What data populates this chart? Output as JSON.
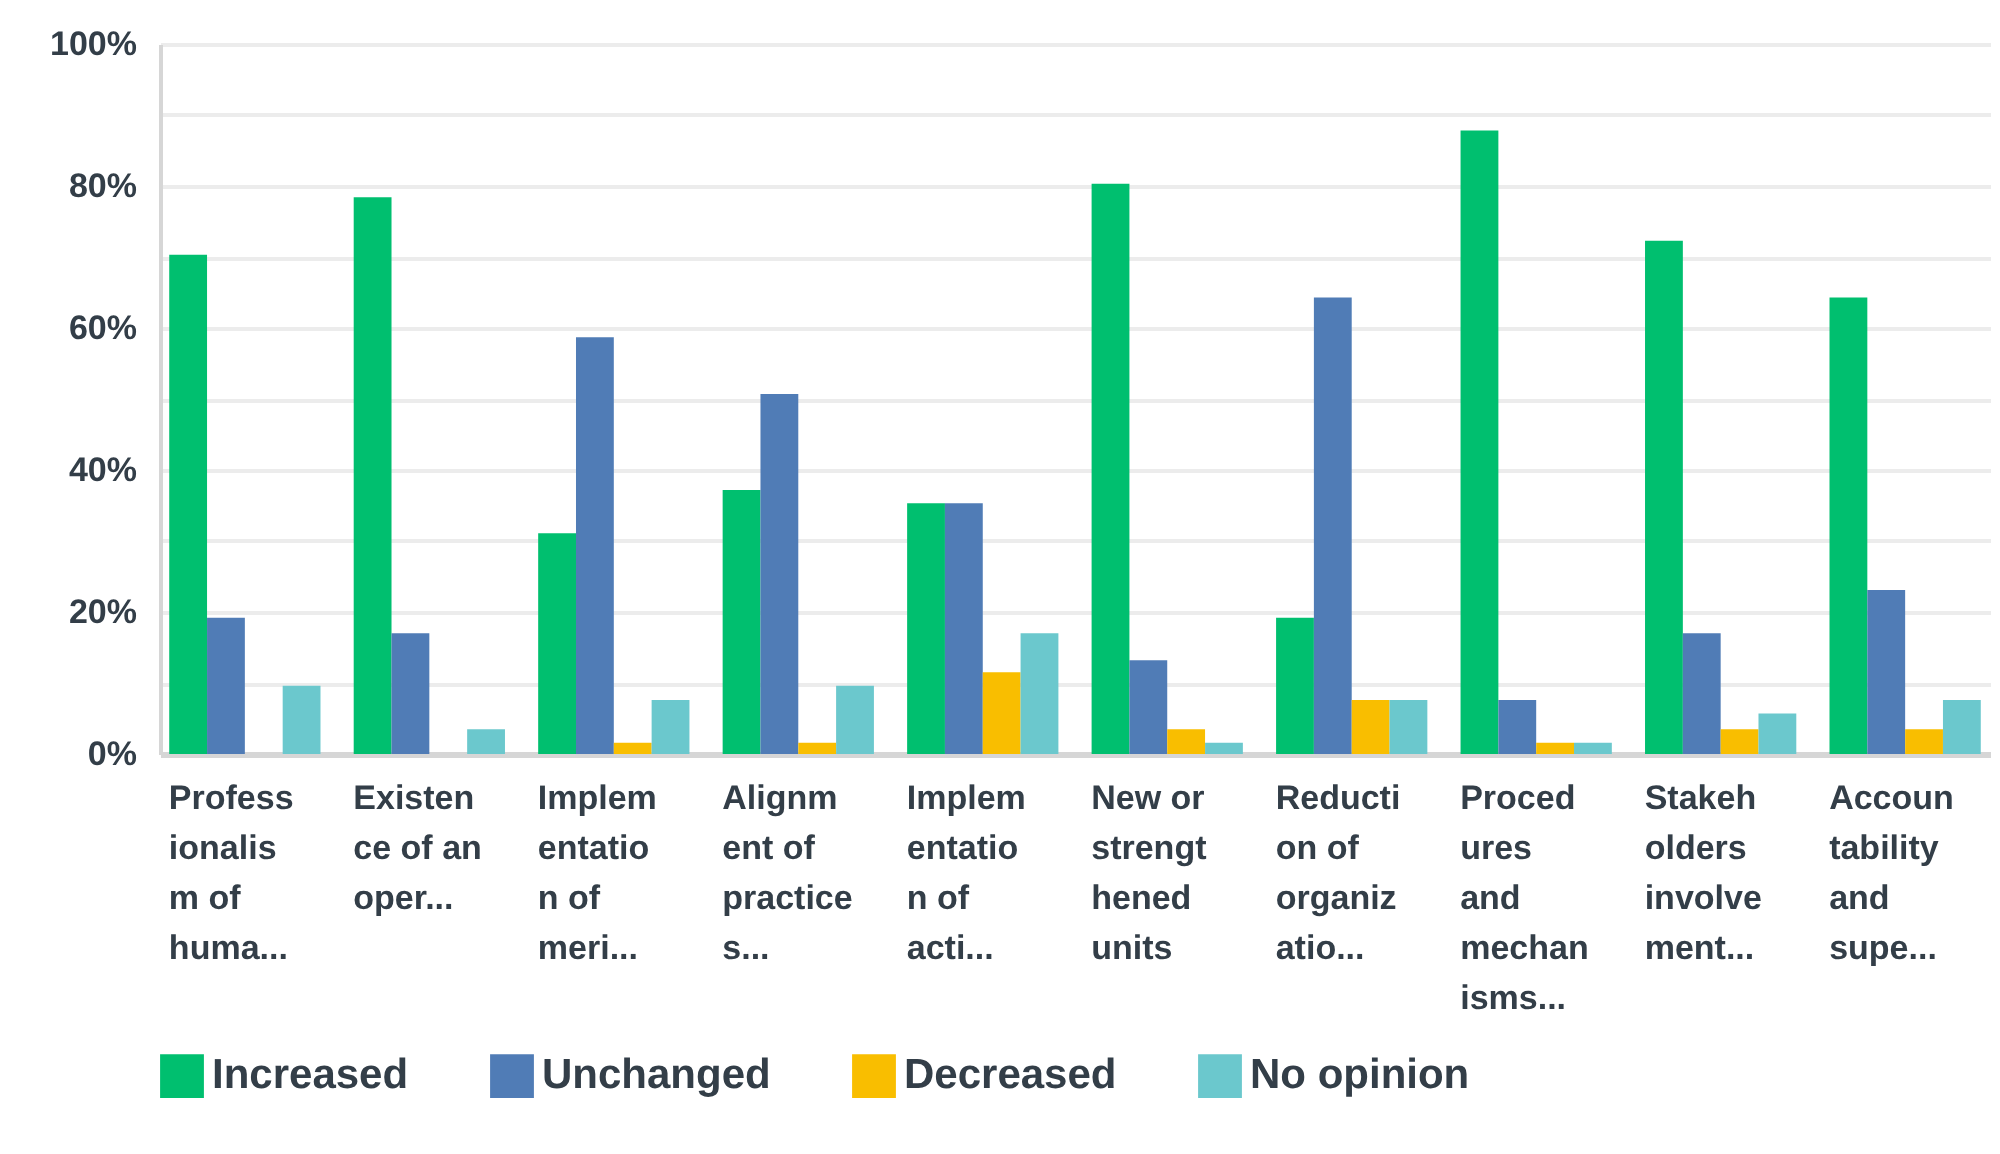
{
  "chart_data": {
    "type": "bar",
    "categories": [
      "Professionalism of huma...",
      "Existence of an oper...",
      "Implementation of meri...",
      "Alignment of practices...",
      "Implementation of acti...",
      "New or strengthened units",
      "Reduction of organizatio...",
      "Procedures and mechanisms...",
      "Stakeholders involvement...",
      "Accountability and supe..."
    ],
    "series": [
      {
        "name": "Increased",
        "color": "#00bf6f",
        "values": [
          70.3,
          78.4,
          31.1,
          37.2,
          35.3,
          80.3,
          19.2,
          87.8,
          72.3,
          64.3
        ]
      },
      {
        "name": "Unchanged",
        "color": "#507cb6",
        "values": [
          19.2,
          17.0,
          58.7,
          50.7,
          35.3,
          13.2,
          64.3,
          7.6,
          17.0,
          23.1
        ]
      },
      {
        "name": "Decreased",
        "color": "#f9be00",
        "values": [
          0,
          0,
          1.6,
          1.6,
          11.5,
          3.5,
          7.6,
          1.6,
          3.5,
          3.5
        ]
      },
      {
        "name": "No opinion",
        "color": "#6bc8cd",
        "values": [
          9.6,
          3.5,
          7.6,
          9.6,
          17.0,
          1.6,
          7.6,
          1.6,
          5.7,
          7.6
        ]
      }
    ],
    "ylim": [
      0,
      100
    ],
    "yticks": [
      {
        "value": 0,
        "label": "0%"
      },
      {
        "value": 10,
        "label": null
      },
      {
        "value": 20,
        "label": "20%"
      },
      {
        "value": 30,
        "label": null
      },
      {
        "value": 40,
        "label": "40%"
      },
      {
        "value": 50,
        "label": null
      },
      {
        "value": 60,
        "label": "60%"
      },
      {
        "value": 70,
        "label": null
      },
      {
        "value": 80,
        "label": "80%"
      },
      {
        "value": 90,
        "label": null
      },
      {
        "value": 100,
        "label": "100%"
      }
    ],
    "grid": true,
    "legend": "bottom"
  }
}
